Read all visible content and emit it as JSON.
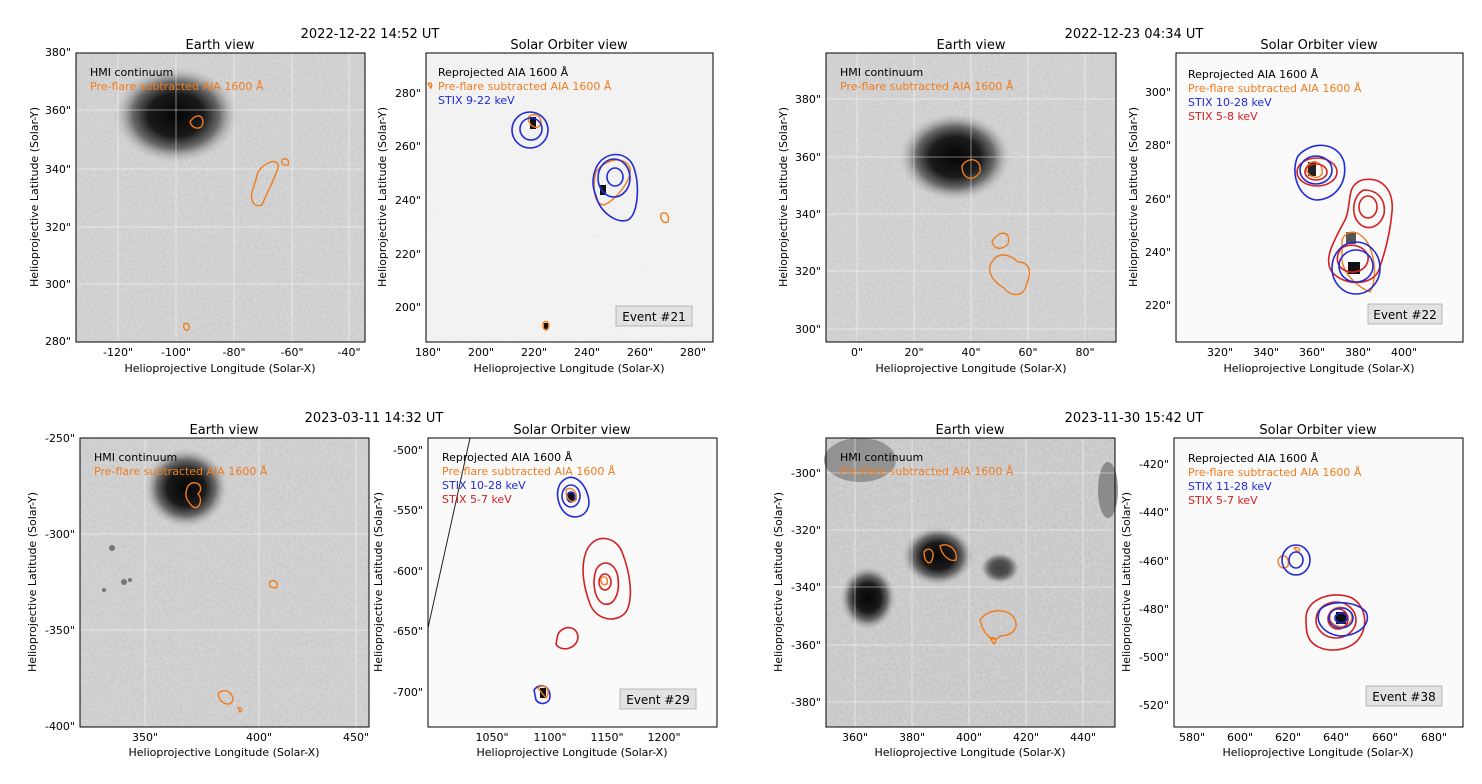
{
  "colors": {
    "hmi_contour": "#f07c1e",
    "stix_blue": "#1f2bd6",
    "stix_red": "#d42020",
    "axis": "#000000",
    "grid": "#ffffff"
  },
  "events": [
    {
      "timestamp": "2022-12-22 14:52 UT",
      "earth": {
        "title": "Earth view",
        "xlabel": "Helioprojective Longitude (Solar-X)",
        "ylabel": "Helioprojective Latitude (Solar-Y)",
        "xticks": [
          "-120\"",
          "-100\"",
          "-80\"",
          "-60\"",
          "-40\""
        ],
        "yticks": [
          "280\"",
          "300\"",
          "320\"",
          "340\"",
          "360\"",
          "380\""
        ],
        "legend": [
          "HMI continuum",
          "Pre-flare subtracted AIA 1600 Å"
        ]
      },
      "orbiter": {
        "title": "Solar Orbiter view",
        "xlabel": "Helioprojective Longitude (Solar-X)",
        "ylabel": "Helioprojective Latitude (Solar-Y)",
        "xticks": [
          "180\"",
          "200\"",
          "220\"",
          "240\"",
          "260\"",
          "280\""
        ],
        "yticks": [
          "200\"",
          "220\"",
          "240\"",
          "260\"",
          "280\""
        ],
        "legend": [
          "Reprojected AIA 1600 Å",
          "Pre-flare subtracted AIA 1600 Å",
          "STIX 9-22 keV"
        ],
        "event_label": "Event #21"
      }
    },
    {
      "timestamp": "2022-12-23 04:34 UT",
      "earth": {
        "title": "Earth view",
        "xlabel": "Helioprojective Longitude (Solar-X)",
        "ylabel": "Helioprojective Latitude (Solar-Y)",
        "xticks": [
          "0\"",
          "20\"",
          "40\"",
          "60\"",
          "80\""
        ],
        "yticks": [
          "300\"",
          "320\"",
          "340\"",
          "360\"",
          "380\""
        ],
        "legend": [
          "HMI continuum",
          "Pre-flare subtracted AIA 1600 Å"
        ]
      },
      "orbiter": {
        "title": "Solar Orbiter view",
        "xlabel": "Helioprojective Longitude (Solar-X)",
        "ylabel": "Helioprojective Latitude (Solar-Y)",
        "xticks": [
          "320\"",
          "340\"",
          "360\"",
          "380\"",
          "400\""
        ],
        "yticks": [
          "220\"",
          "240\"",
          "260\"",
          "280\"",
          "300\""
        ],
        "legend": [
          "Reprojected AIA 1600 Å",
          "Pre-flare subtracted AIA 1600 Å",
          "STIX 10-28 keV",
          "STIX 5-8 keV"
        ],
        "event_label": "Event #22"
      }
    },
    {
      "timestamp": "2023-03-11 14:32 UT",
      "earth": {
        "title": "Earth view",
        "xlabel": "Helioprojective Longitude (Solar-X)",
        "ylabel": "Helioprojective Latitude (Solar-Y)",
        "xticks": [
          "350\"",
          "400\"",
          "450\""
        ],
        "yticks": [
          "-250\"",
          "-300\"",
          "-350\"",
          "-400\""
        ],
        "legend": [
          "HMI continuum",
          "Pre-flare subtracted AIA 1600 Å"
        ]
      },
      "orbiter": {
        "title": "Solar Orbiter view",
        "xlabel": "Helioprojective Longitude (Solar-X)",
        "ylabel": "Helioprojective Latitude (Solar-Y)",
        "xticks": [
          "1050\"",
          "1100\"",
          "1150\"",
          "1200\""
        ],
        "yticks": [
          "-500\"",
          "-550\"",
          "-600\"",
          "-650\"",
          "-700\""
        ],
        "legend": [
          "Reprojected AIA 1600 Å",
          "Pre-flare subtracted AIA 1600 Å",
          "STIX 10-28 keV",
          "STIX 5-7 keV"
        ],
        "event_label": "Event #29"
      }
    },
    {
      "timestamp": "2023-11-30 15:42 UT",
      "earth": {
        "title": "Earth view",
        "xlabel": "Helioprojective Longitude (Solar-X)",
        "ylabel": "Helioprojective Latitude (Solar-Y)",
        "xticks": [
          "360\"",
          "380\"",
          "400\"",
          "420\"",
          "440\""
        ],
        "yticks": [
          "-300\"",
          "-320\"",
          "-340\"",
          "-360\"",
          "-380\""
        ],
        "legend": [
          "HMI continuum",
          "Pre-flare subtracted AIA 1600 Å"
        ]
      },
      "orbiter": {
        "title": "Solar Orbiter view",
        "xlabel": "Helioprojective Longitude (Solar-X)",
        "ylabel": "Helioprojective Latitude (Solar-Y)",
        "xticks": [
          "580\"",
          "600\"",
          "620\"",
          "640\"",
          "660\"",
          "680\""
        ],
        "yticks": [
          "-420\"",
          "-440\"",
          "-460\"",
          "-480\"",
          "-500\"",
          "-520\""
        ],
        "legend": [
          "Reprojected AIA 1600 Å",
          "Pre-flare subtracted AIA 1600 Å",
          "STIX 11-28 keV",
          "STIX 5-7 keV"
        ],
        "event_label": "Event #38"
      }
    }
  ]
}
